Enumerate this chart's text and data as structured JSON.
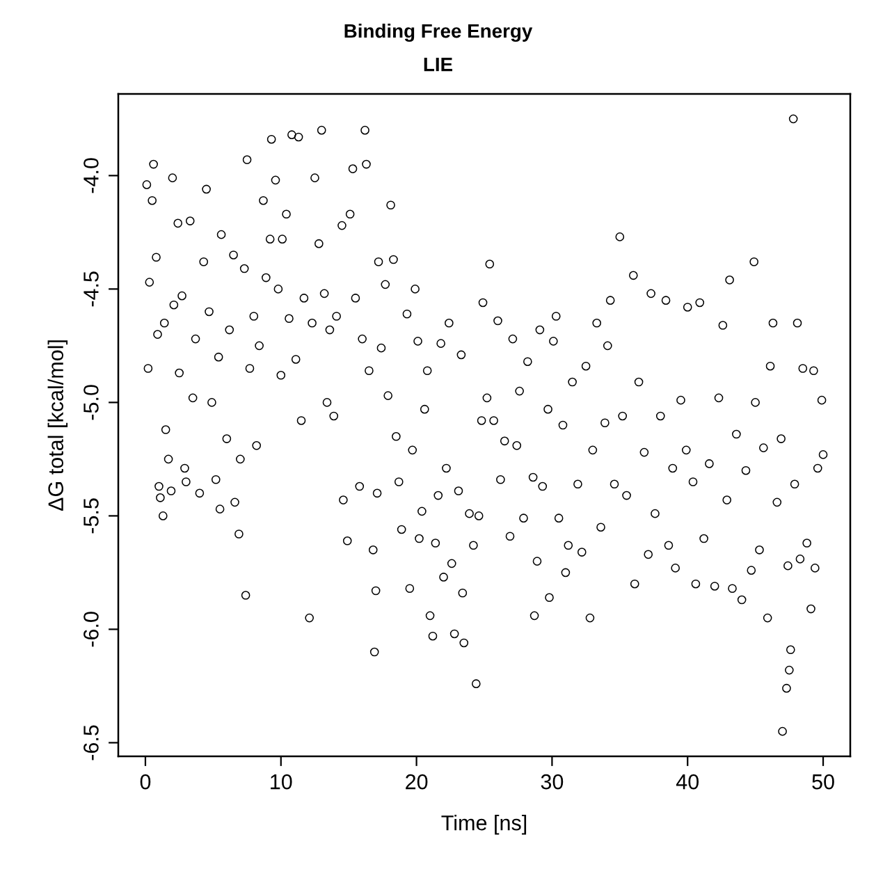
{
  "chart_data": {
    "type": "scatter",
    "title": "Binding Free Energy",
    "subtitle": "LIE",
    "xlabel": "Time [ns]",
    "ylabel": "ΔG total [kcal/mol]",
    "x": [
      0.1,
      0.2,
      0.3,
      0.5,
      0.6,
      0.8,
      0.9,
      1.0,
      1.1,
      1.3,
      1.4,
      1.5,
      1.7,
      1.9,
      2.0,
      2.1,
      2.4,
      2.5,
      2.7,
      2.9,
      3.0,
      3.3,
      3.5,
      3.7,
      4.0,
      4.3,
      4.5,
      4.7,
      4.9,
      5.2,
      5.4,
      5.5,
      5.6,
      6.0,
      6.2,
      6.5,
      6.6,
      6.9,
      7.0,
      7.3,
      7.4,
      7.5,
      7.7,
      8.0,
      8.2,
      8.4,
      8.7,
      8.9,
      9.2,
      9.3,
      9.6,
      9.8,
      10.0,
      10.1,
      10.4,
      10.6,
      10.8,
      11.1,
      11.3,
      11.5,
      11.7,
      12.1,
      12.3,
      12.5,
      12.8,
      13.0,
      13.2,
      13.4,
      13.6,
      13.9,
      14.1,
      14.5,
      14.6,
      14.9,
      15.1,
      15.3,
      15.5,
      15.8,
      16.0,
      16.2,
      16.3,
      16.5,
      16.8,
      16.9,
      17.0,
      17.1,
      17.2,
      17.4,
      17.7,
      17.9,
      18.1,
      18.3,
      18.5,
      18.7,
      18.9,
      19.3,
      19.5,
      19.7,
      19.9,
      20.1,
      20.2,
      20.4,
      20.6,
      20.8,
      21.0,
      21.2,
      21.4,
      21.6,
      21.8,
      22.0,
      22.2,
      22.4,
      22.6,
      22.8,
      23.1,
      23.3,
      23.4,
      23.5,
      23.9,
      24.2,
      24.4,
      24.6,
      24.8,
      24.9,
      25.2,
      25.4,
      25.7,
      26.0,
      26.2,
      26.5,
      26.9,
      27.1,
      27.4,
      27.6,
      27.9,
      28.2,
      28.6,
      28.7,
      28.9,
      29.1,
      29.3,
      29.7,
      29.8,
      30.1,
      30.3,
      30.5,
      30.8,
      31.0,
      31.2,
      31.5,
      31.9,
      32.2,
      32.5,
      32.8,
      33.0,
      33.3,
      33.6,
      33.9,
      34.1,
      34.3,
      34.6,
      35.0,
      35.2,
      35.5,
      36.0,
      36.1,
      36.4,
      36.8,
      37.1,
      37.3,
      37.6,
      38.0,
      38.4,
      38.6,
      38.9,
      39.1,
      39.5,
      39.9,
      40.0,
      40.4,
      40.6,
      40.9,
      41.2,
      41.6,
      42.0,
      42.3,
      42.6,
      42.9,
      43.1,
      43.3,
      43.6,
      44.0,
      44.3,
      44.7,
      44.9,
      45.0,
      45.3,
      45.6,
      45.9,
      46.1,
      46.3,
      46.6,
      46.9,
      47.0,
      47.3,
      47.4,
      47.5,
      47.6,
      47.8,
      47.9,
      48.1,
      48.3,
      48.5,
      48.8,
      49.1,
      49.3,
      49.4,
      49.6,
      49.9,
      50.0
    ],
    "values": [
      -4.04,
      -4.85,
      -4.47,
      -4.11,
      -3.95,
      -4.36,
      -4.7,
      -5.37,
      -5.42,
      -5.5,
      -4.65,
      -5.12,
      -5.25,
      -5.39,
      -4.01,
      -4.57,
      -4.21,
      -4.87,
      -4.53,
      -5.29,
      -5.35,
      -4.2,
      -4.98,
      -4.72,
      -5.4,
      -4.38,
      -4.06,
      -4.6,
      -5.0,
      -5.34,
      -4.8,
      -5.47,
      -4.26,
      -5.16,
      -4.68,
      -4.35,
      -5.44,
      -5.58,
      -5.25,
      -4.41,
      -5.85,
      -3.93,
      -4.85,
      -4.62,
      -5.19,
      -4.75,
      -4.11,
      -4.45,
      -4.28,
      -3.84,
      -4.02,
      -4.5,
      -4.88,
      -4.28,
      -4.17,
      -4.63,
      -3.82,
      -4.81,
      -3.83,
      -5.08,
      -4.54,
      -5.95,
      -4.65,
      -4.01,
      -4.3,
      -3.8,
      -4.52,
      -5.0,
      -4.68,
      -5.06,
      -4.62,
      -4.22,
      -5.43,
      -5.61,
      -4.17,
      -3.97,
      -4.54,
      -5.37,
      -4.72,
      -3.8,
      -3.95,
      -4.86,
      -5.65,
      -6.1,
      -5.83,
      -5.4,
      -4.38,
      -4.76,
      -4.48,
      -4.97,
      -4.13,
      -4.37,
      -5.15,
      -5.35,
      -5.56,
      -4.61,
      -5.82,
      -5.21,
      -4.5,
      -4.73,
      -5.6,
      -5.48,
      -5.03,
      -4.86,
      -5.94,
      -6.03,
      -5.62,
      -5.41,
      -4.74,
      -5.77,
      -5.29,
      -4.65,
      -5.71,
      -6.02,
      -5.39,
      -4.79,
      -5.84,
      -6.06,
      -5.49,
      -5.63,
      -6.24,
      -5.5,
      -5.08,
      -4.56,
      -4.98,
      -4.39,
      -5.08,
      -4.64,
      -5.34,
      -5.17,
      -5.59,
      -4.72,
      -5.19,
      -4.95,
      -5.51,
      -4.82,
      -5.33,
      -5.94,
      -5.7,
      -4.68,
      -5.37,
      -5.03,
      -5.86,
      -4.73,
      -4.62,
      -5.51,
      -5.1,
      -5.75,
      -5.63,
      -4.91,
      -5.36,
      -5.66,
      -4.84,
      -5.95,
      -5.21,
      -4.65,
      -5.55,
      -5.09,
      -4.75,
      -4.55,
      -5.36,
      -4.27,
      -5.06,
      -5.41,
      -4.44,
      -5.8,
      -4.91,
      -5.22,
      -5.67,
      -4.52,
      -5.49,
      -5.06,
      -4.55,
      -5.63,
      -5.29,
      -5.73,
      -4.99,
      -5.21,
      -4.58,
      -5.35,
      -5.8,
      -4.56,
      -5.6,
      -5.27,
      -5.81,
      -4.98,
      -4.66,
      -5.43,
      -4.46,
      -5.82,
      -5.14,
      -5.87,
      -5.3,
      -5.74,
      -4.38,
      -5.0,
      -5.65,
      -5.2,
      -5.95,
      -4.84,
      -4.65,
      -5.44,
      -5.16,
      -6.45,
      -6.26,
      -5.72,
      -6.18,
      -6.09,
      -3.75,
      -5.36,
      -4.65,
      -5.69,
      -4.85,
      -5.62,
      -5.91,
      -4.86,
      -5.73,
      -5.29,
      -4.99,
      -5.23
    ],
    "color": "#000000",
    "marker": "circle",
    "xlim": [
      -2,
      52
    ],
    "ylim": [
      -6.56,
      -3.64
    ],
    "xticks": [
      0,
      10,
      20,
      30,
      40,
      50
    ],
    "yticks": [
      {
        "value": -4.0,
        "label": "-4.0"
      },
      {
        "value": -4.5,
        "label": "-4.5"
      },
      {
        "value": -5.0,
        "label": "-5.0"
      },
      {
        "value": -5.5,
        "label": "-5.5"
      },
      {
        "value": -6.0,
        "label": "-6.0"
      },
      {
        "value": -6.5,
        "label": "-6.5"
      }
    ]
  }
}
